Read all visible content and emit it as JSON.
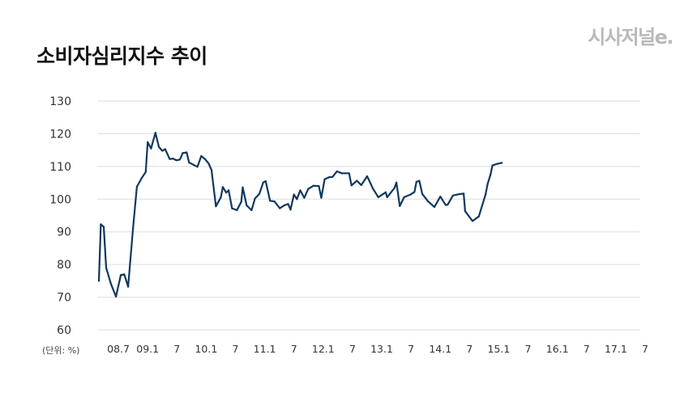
{
  "header": {
    "title": "소비자심리지수 추이",
    "brand": "시사저널e."
  },
  "colors": {
    "line": "#10385e",
    "grid": "#dedede",
    "text": "#333333"
  },
  "chart_data": {
    "type": "line",
    "title": "소비자심리지수 추이",
    "unit_label": "(단위: %)",
    "grid": true,
    "ylim": [
      60,
      130
    ],
    "yticks": [
      60,
      70,
      80,
      90,
      100,
      110,
      120,
      130
    ],
    "x_range": [
      0,
      112
    ],
    "xtick_labels": [
      {
        "x": 4,
        "label": "08.7"
      },
      {
        "x": 10,
        "label": "09.1"
      },
      {
        "x": 16,
        "label": "7"
      },
      {
        "x": 22,
        "label": "10.1"
      },
      {
        "x": 28,
        "label": "7"
      },
      {
        "x": 34,
        "label": "11.1"
      },
      {
        "x": 40,
        "label": "7"
      },
      {
        "x": 46,
        "label": "12.1"
      },
      {
        "x": 52,
        "label": "7"
      },
      {
        "x": 58,
        "label": "13.1"
      },
      {
        "x": 64,
        "label": "7"
      },
      {
        "x": 70,
        "label": "14.1"
      },
      {
        "x": 76,
        "label": "7"
      },
      {
        "x": 82,
        "label": "15.1"
      },
      {
        "x": 88,
        "label": "7"
      },
      {
        "x": 94,
        "label": "16.1"
      },
      {
        "x": 100,
        "label": "7"
      },
      {
        "x": 106,
        "label": "17.1"
      },
      {
        "x": 112,
        "label": "7"
      }
    ],
    "series": [
      {
        "values": [
          [
            0,
            75
          ],
          [
            0.4,
            92.3
          ],
          [
            1,
            91.5
          ],
          [
            1.5,
            79
          ],
          [
            2.5,
            74
          ],
          [
            3.5,
            70.2
          ],
          [
            4.5,
            76.8
          ],
          [
            5.2,
            77
          ],
          [
            6,
            73.2
          ],
          [
            7,
            91
          ],
          [
            7.8,
            103.8
          ],
          [
            8.8,
            106.5
          ],
          [
            9.6,
            108.3
          ],
          [
            10,
            117.4
          ],
          [
            10.7,
            115.5
          ],
          [
            11.6,
            120.3
          ],
          [
            12.3,
            116
          ],
          [
            13,
            114.8
          ],
          [
            13.6,
            115.3
          ],
          [
            14.5,
            112.3
          ],
          [
            15.2,
            112.4
          ],
          [
            15.9,
            111.9
          ],
          [
            16.6,
            112.1
          ],
          [
            17.2,
            114.1
          ],
          [
            18,
            114.3
          ],
          [
            18.5,
            111.2
          ],
          [
            19.4,
            110.5
          ],
          [
            20.2,
            109.9
          ],
          [
            21,
            113.2
          ],
          [
            21.8,
            112.2
          ],
          [
            22.5,
            110.9
          ],
          [
            23.1,
            108.9
          ],
          [
            24,
            97.8
          ],
          [
            25,
            100.5
          ],
          [
            25.4,
            103.7
          ],
          [
            26.1,
            102
          ],
          [
            26.6,
            102.7
          ],
          [
            27.3,
            97.2
          ],
          [
            28.3,
            96.6
          ],
          [
            29.2,
            99.2
          ],
          [
            29.5,
            103.6
          ],
          [
            30.3,
            98.1
          ],
          [
            31.3,
            96.6
          ],
          [
            32,
            100.2
          ],
          [
            32.9,
            101.6
          ],
          [
            33.7,
            105.1
          ],
          [
            34.2,
            105.5
          ],
          [
            35.1,
            99.5
          ],
          [
            36,
            99.3
          ],
          [
            37.1,
            97.2
          ],
          [
            38,
            98.1
          ],
          [
            38.8,
            98.5
          ],
          [
            39.3,
            96.8
          ],
          [
            40,
            101.4
          ],
          [
            40.6,
            100
          ],
          [
            41.3,
            102.7
          ],
          [
            42.1,
            100.4
          ],
          [
            42.9,
            103.1
          ],
          [
            44,
            104.1
          ],
          [
            45.1,
            104
          ],
          [
            45.6,
            100.4
          ],
          [
            46.3,
            106.1
          ],
          [
            47.2,
            106.7
          ],
          [
            47.9,
            106.8
          ],
          [
            48.8,
            108.5
          ],
          [
            49.8,
            107.9
          ],
          [
            51.3,
            107.9
          ],
          [
            51.8,
            104.2
          ],
          [
            52.9,
            105.6
          ],
          [
            53.8,
            104.3
          ],
          [
            55,
            107
          ],
          [
            56.2,
            103.2
          ],
          [
            57.3,
            100.6
          ],
          [
            58.8,
            102.1
          ],
          [
            59.1,
            100.6
          ],
          [
            60.6,
            103.4
          ],
          [
            61,
            105.1
          ],
          [
            61.7,
            97.9
          ],
          [
            62.6,
            100.6
          ],
          [
            63.9,
            101.4
          ],
          [
            64.7,
            102.2
          ],
          [
            65.1,
            105.3
          ],
          [
            65.7,
            105.6
          ],
          [
            66.3,
            101.6
          ],
          [
            67.5,
            99.3
          ],
          [
            68.8,
            97.6
          ],
          [
            70,
            100.8
          ],
          [
            71.1,
            98.2
          ],
          [
            71.5,
            98.3
          ],
          [
            72.6,
            101.1
          ],
          [
            73.8,
            101.5
          ],
          [
            74.8,
            101.7
          ],
          [
            75.1,
            96.3
          ],
          [
            76.6,
            93.3
          ],
          [
            77.9,
            94.7
          ],
          [
            79.3,
            101.5
          ],
          [
            79.7,
            104.6
          ],
          [
            80.3,
            107.5
          ],
          [
            80.7,
            110.3
          ],
          [
            81.7,
            110.8
          ],
          [
            82.6,
            111.1
          ]
        ]
      }
    ]
  }
}
